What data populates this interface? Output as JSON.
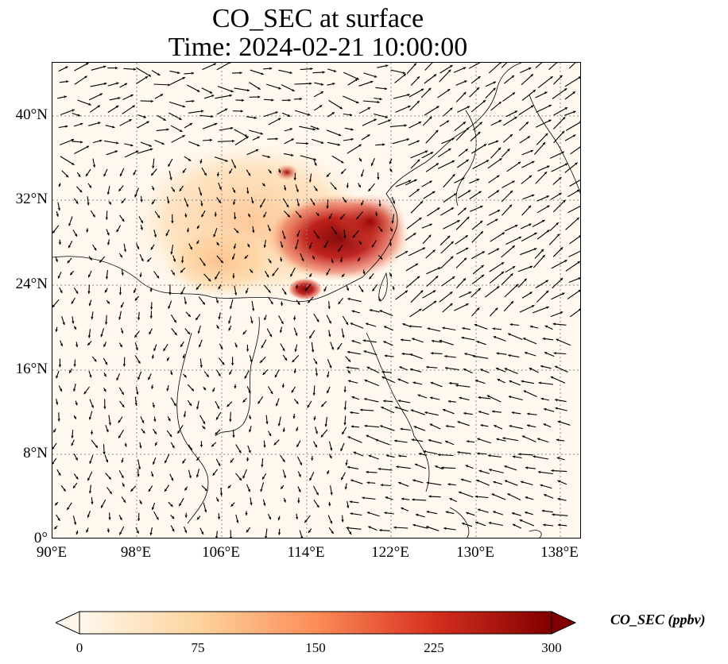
{
  "title": {
    "line1": "CO_SEC at surface",
    "line2": "Time: 2024-02-21 10:00:00"
  },
  "map": {
    "type": "geographic field with wind vectors",
    "extent": {
      "lon": [
        90,
        141
      ],
      "lat": [
        0,
        45
      ]
    },
    "lat_ticks": [
      "0°",
      "8°N",
      "16°N",
      "24°N",
      "32°N",
      "40°N"
    ],
    "lon_ticks": [
      "90°E",
      "98°E",
      "106°E",
      "114°E",
      "122°E",
      "130°E",
      "138°E"
    ],
    "gridlines": "dotted",
    "field": "CO_SEC",
    "highlight": "highest concentrations over eastern China (about 112–122°E, 24–33°N)"
  },
  "colorbar": {
    "label": "CO_SEC (ppbv)",
    "ticks": [
      "0",
      "75",
      "150",
      "225",
      "300"
    ],
    "range": [
      0,
      300
    ],
    "extend": "both",
    "colormap": "OrRd",
    "colors": [
      "#fff7ec",
      "#fdd49e",
      "#fc8d59",
      "#d7301f",
      "#7f0000"
    ]
  }
}
